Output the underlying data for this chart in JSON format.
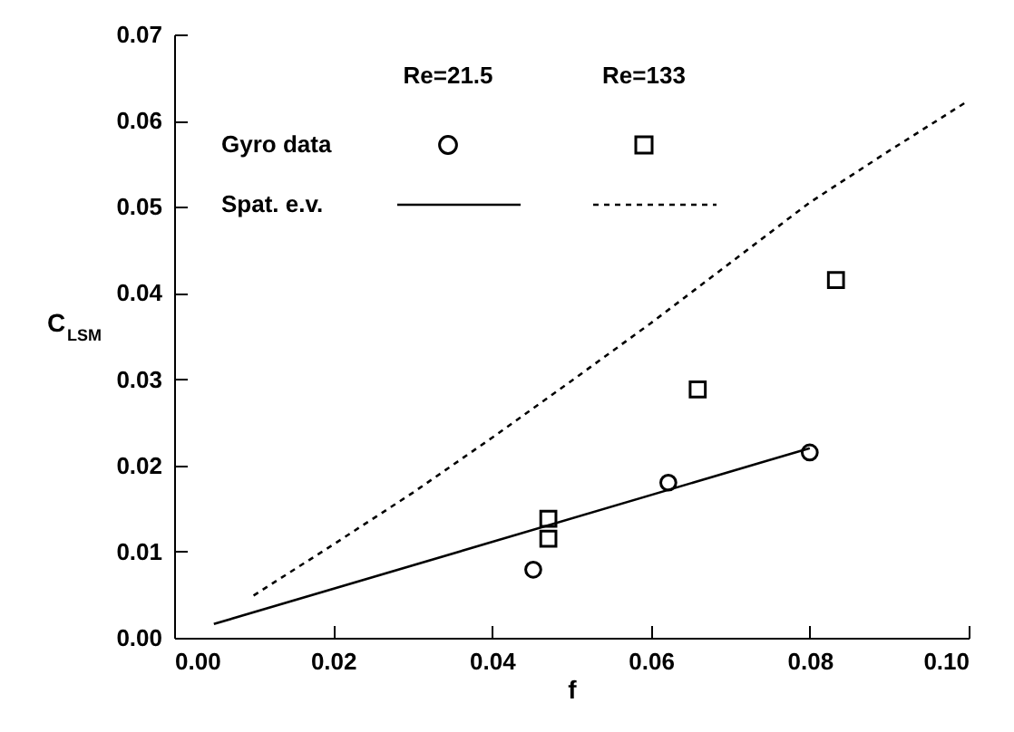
{
  "chart_data": {
    "type": "scatter",
    "xlabel": "f",
    "ylabel": "C$_{LSM}$",
    "xlim": [
      0,
      0.1
    ],
    "ylim": [
      0,
      0.07
    ],
    "xticks": [
      {
        "value": 0,
        "label": "0.00"
      },
      {
        "value": 0.02,
        "label": "0.02"
      },
      {
        "value": 0.04,
        "label": "0.04"
      },
      {
        "value": 0.06,
        "label": "0.06"
      },
      {
        "value": 0.08,
        "label": "0.08"
      },
      {
        "value": 0.1,
        "label": "0.10"
      }
    ],
    "yticks": [
      {
        "value": 0,
        "label": "0.00"
      },
      {
        "value": 0.01,
        "label": "0.01"
      },
      {
        "value": 0.02,
        "label": "0.02"
      },
      {
        "value": 0.03,
        "label": "0.03"
      },
      {
        "value": 0.04,
        "label": "0.04"
      },
      {
        "value": 0.05,
        "label": "0.05"
      },
      {
        "value": 0.06,
        "label": "0.06"
      },
      {
        "value": 0.07,
        "label": "0.07"
      }
    ],
    "grid": false,
    "annotations": [
      "Re=21.5",
      "Re=133",
      "Gyro data",
      "Spat. e.v."
    ],
    "series": [
      {
        "marker": "circle",
        "color": "#000000",
        "x": [
          0.0452,
          0.0622,
          0.08
        ],
        "values": [
          0.0079,
          0.018,
          0.0215
        ]
      },
      {
        "marker": "square",
        "color": "#000000",
        "x": [
          0.0471,
          0.0471,
          0.0659,
          0.0833
        ],
        "values": [
          0.0138,
          0.0115,
          0.0288,
          0.0415
        ]
      },
      {
        "type": "line",
        "line_style": "solid",
        "color": "#000000",
        "x": [
          0.005,
          0.08
        ],
        "values": [
          0.0016,
          0.022
        ]
      },
      {
        "type": "line",
        "line_style": "dashed",
        "color": "#000000",
        "x": [
          0.01,
          0.02,
          0.03,
          0.04,
          0.05,
          0.06,
          0.07,
          0.08,
          0.09,
          0.0996
        ],
        "values": [
          0.0049,
          0.0108,
          0.0168,
          0.0232,
          0.0298,
          0.0365,
          0.0435,
          0.0505,
          0.0565,
          0.0621
        ]
      }
    ]
  }
}
